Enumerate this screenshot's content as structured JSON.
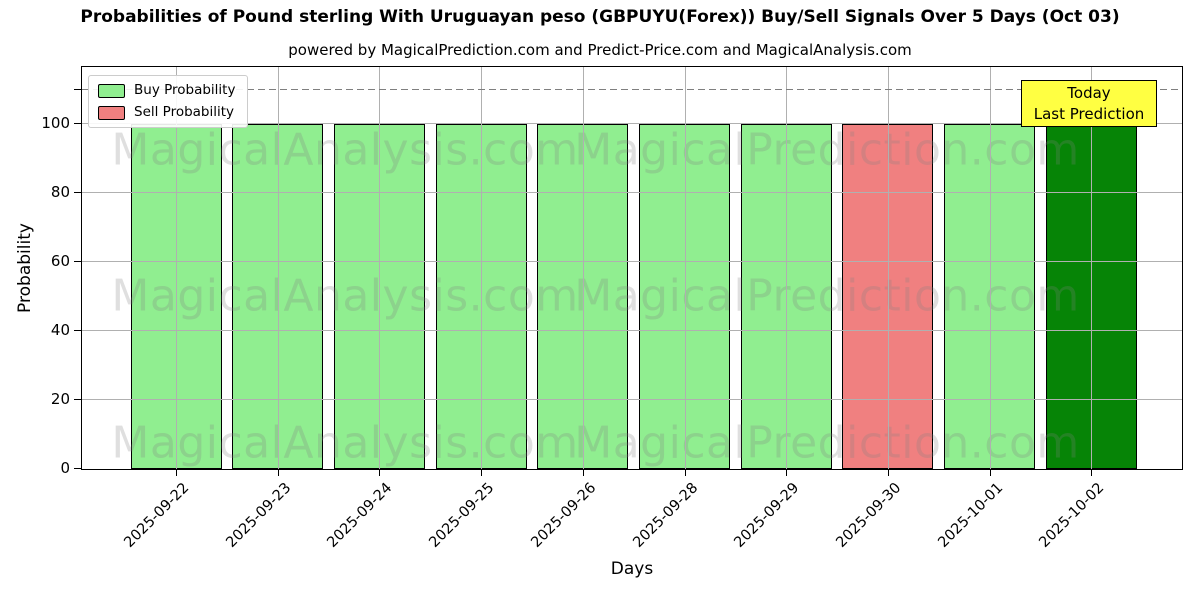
{
  "title": "Probabilities of Pound sterling With Uruguayan peso (GBPUYU(Forex)) Buy/Sell Signals Over 5 Days (Oct 03)",
  "subtitle": "powered by MagicalPrediction.com and Predict-Price.com and MagicalAnalysis.com",
  "axes": {
    "xlabel": "Days",
    "ylabel": "Probability",
    "yticks": [
      0,
      20,
      40,
      60,
      80,
      100
    ],
    "ylim": [
      0,
      116
    ],
    "threshold_dashed_y": 110,
    "grid": true
  },
  "legend": {
    "items": [
      {
        "label": "Buy Probability",
        "key": "buy"
      },
      {
        "label": "Sell Probability",
        "key": "sell"
      }
    ],
    "position": "upper left"
  },
  "annotation": {
    "line1": "Today",
    "line2": "Last Prediction",
    "bg_color": "#ffff42",
    "attached_to": "2025-10-02"
  },
  "watermarks": {
    "left_text": "MagicalAnalysis.com",
    "right_text": "MagicalPrediction.com",
    "color": "rgba(128,128,128,0.25)",
    "rows": 3
  },
  "colors": {
    "buy": "#90EE90",
    "sell": "#F08080",
    "today": "#068406",
    "grid": "#b0b0b0",
    "dashed": "#7f7f7f",
    "bar_edge": "#000000"
  },
  "chart_data": {
    "type": "bar",
    "title": "Probabilities of Pound sterling With Uruguayan peso (GBPUYU(Forex)) Buy/Sell Signals Over 5 Days (Oct 03)",
    "xlabel": "Days",
    "ylabel": "Probability",
    "ylim": [
      0,
      116
    ],
    "grid": true,
    "legend_position": "upper left",
    "dashed_line_y": 110,
    "categories": [
      "2025-09-22",
      "2025-09-23",
      "2025-09-24",
      "2025-09-25",
      "2025-09-26",
      "2025-09-28",
      "2025-09-29",
      "2025-09-30",
      "2025-10-01",
      "2025-10-02"
    ],
    "signals": [
      "buy",
      "buy",
      "buy",
      "buy",
      "buy",
      "buy",
      "buy",
      "sell",
      "buy",
      "today"
    ],
    "values": [
      100,
      100,
      100,
      100,
      100,
      100,
      100,
      100,
      100,
      100
    ],
    "series": [
      {
        "name": "Buy Probability",
        "values": [
          100,
          100,
          100,
          100,
          100,
          100,
          100,
          0,
          100,
          100
        ]
      },
      {
        "name": "Sell Probability",
        "values": [
          0,
          0,
          0,
          0,
          0,
          0,
          0,
          100,
          0,
          0
        ]
      }
    ]
  }
}
